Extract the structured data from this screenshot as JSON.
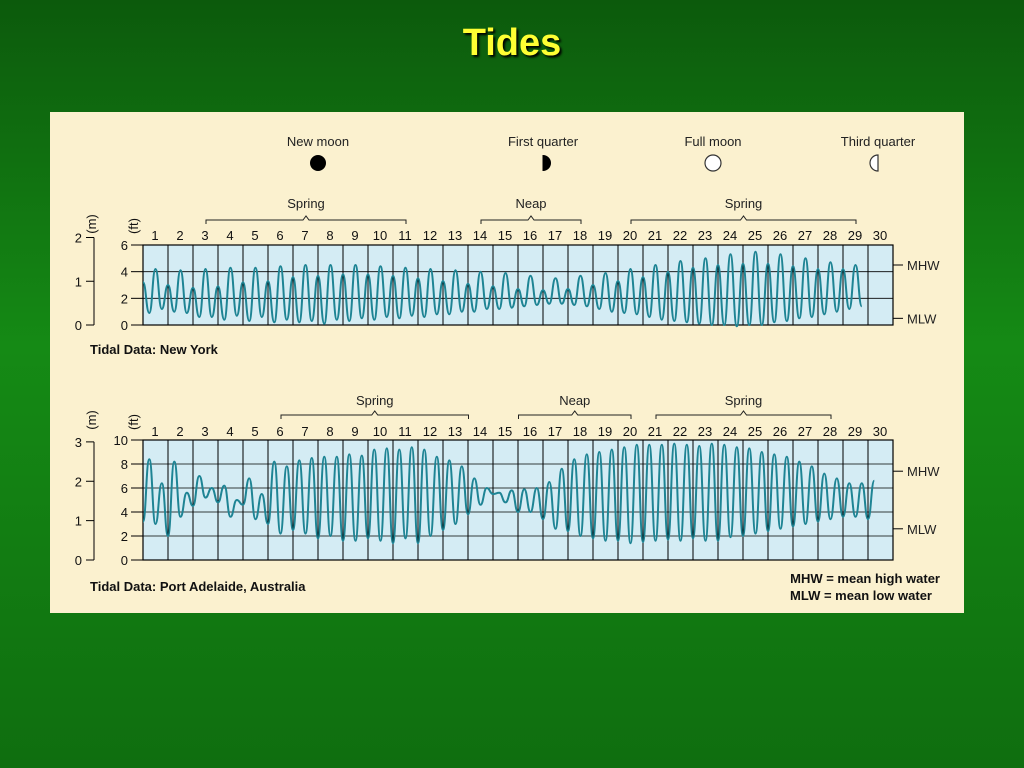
{
  "slide_title": "Tides",
  "moon_phases": [
    {
      "label": "New moon",
      "phase": "new",
      "day": 8
    },
    {
      "label": "First quarter",
      "phase": "first-quarter",
      "day": 17
    },
    {
      "label": "Full moon",
      "phase": "full",
      "day": 23.8
    },
    {
      "label": "Third quarter",
      "phase": "third-quarter",
      "day": 30.4
    }
  ],
  "legend": {
    "mhw": "MHW = mean high water",
    "mlw": "MLW = mean low water"
  },
  "chart_data": [
    {
      "type": "line",
      "title": "Tidal Data: New York",
      "x_ticks": [
        "1",
        "2",
        "3",
        "4",
        "5",
        "6",
        "7",
        "8",
        "9",
        "10",
        "11",
        "12",
        "13",
        "14",
        "15",
        "16",
        "17",
        "18",
        "19",
        "20",
        "21",
        "22",
        "23",
        "24",
        "25",
        "26",
        "27",
        "28",
        "29",
        "30"
      ],
      "xlim": [
        1,
        31
      ],
      "ylabel_ft": "(ft)",
      "ylabel_m": "(m)",
      "ylim_ft": [
        0,
        6
      ],
      "ft_ticks": [
        "0",
        "2",
        "4",
        "6"
      ],
      "m_ticks": [
        "0",
        "1",
        "2"
      ],
      "ref_lines": [
        {
          "label": "MHW",
          "value_ft": 4.5
        },
        {
          "label": "MLW",
          "value_ft": 0.5
        }
      ],
      "periods": [
        {
          "label": "Spring",
          "from": 4,
          "to": 12
        },
        {
          "label": "Neap",
          "from": 15,
          "to": 19
        },
        {
          "label": "Spring",
          "from": 21,
          "to": 30
        }
      ],
      "series": [
        {
          "x_start_day": 1,
          "step_days": 0.25,
          "values_ft": [
            3.2,
            0.9,
            4.2,
            1.2,
            3.0,
            1.0,
            4.1,
            0.9,
            2.8,
            0.6,
            4.2,
            0.6,
            2.9,
            0.4,
            4.3,
            0.7,
            3.2,
            0.3,
            4.3,
            0.6,
            3.3,
            0.2,
            4.4,
            0.4,
            3.6,
            0.2,
            4.5,
            0.3,
            3.7,
            0.1,
            4.5,
            0.4,
            3.8,
            0.3,
            4.5,
            0.5,
            3.8,
            0.4,
            4.4,
            0.6,
            3.7,
            0.5,
            4.3,
            0.7,
            3.5,
            0.6,
            4.2,
            0.8,
            3.3,
            0.8,
            4.1,
            1.0,
            3.1,
            1.0,
            4.0,
            1.2,
            2.9,
            1.2,
            3.9,
            1.3,
            2.7,
            1.4,
            3.7,
            1.5,
            2.6,
            1.6,
            3.5,
            1.6,
            2.7,
            1.5,
            3.7,
            1.4,
            3.0,
            1.2,
            3.9,
            1.0,
            3.3,
            0.9,
            4.2,
            0.8,
            3.6,
            0.6,
            4.5,
            0.4,
            4.0,
            0.3,
            4.8,
            0.2,
            4.3,
            0.1,
            5.0,
            0.0,
            4.5,
            0.0,
            5.3,
            -0.1,
            4.6,
            0.0,
            5.5,
            0.0,
            4.6,
            0.2,
            5.3,
            0.3,
            4.4,
            0.5,
            5.0,
            0.6,
            4.2,
            0.8,
            4.7,
            1.0,
            4.2,
            1.2,
            4.5,
            1.4
          ]
        }
      ]
    },
    {
      "type": "line",
      "title": "Tidal Data: Port Adelaide, Australia",
      "x_ticks": [
        "1",
        "2",
        "3",
        "4",
        "5",
        "6",
        "7",
        "8",
        "9",
        "10",
        "11",
        "12",
        "13",
        "14",
        "15",
        "16",
        "17",
        "18",
        "19",
        "20",
        "21",
        "22",
        "23",
        "24",
        "25",
        "26",
        "27",
        "28",
        "29",
        "30"
      ],
      "xlim": [
        1,
        31
      ],
      "ylabel_ft": "(ft)",
      "ylabel_m": "(m)",
      "ylim_ft": [
        0,
        10
      ],
      "ft_ticks": [
        "0",
        "2",
        "4",
        "6",
        "8",
        "10"
      ],
      "m_ticks": [
        "0",
        "1",
        "2",
        "3"
      ],
      "ref_lines": [
        {
          "label": "MHW",
          "value_ft": 7.4
        },
        {
          "label": "MLW",
          "value_ft": 2.6
        }
      ],
      "periods": [
        {
          "label": "Spring",
          "from": 7,
          "to": 14.5
        },
        {
          "label": "Neap",
          "from": 16.5,
          "to": 21
        },
        {
          "label": "Spring",
          "from": 22,
          "to": 29
        }
      ],
      "series": [
        {
          "x_start_day": 1,
          "step_days": 0.25,
          "values_ft": [
            3.2,
            8.4,
            3.0,
            6.4,
            2.0,
            8.2,
            3.6,
            5.6,
            4.5,
            7.0,
            5.2,
            6.0,
            4.8,
            6.2,
            3.6,
            5.0,
            4.6,
            6.8,
            3.4,
            5.5,
            3.0,
            8.2,
            2.2,
            7.8,
            2.5,
            8.3,
            2.2,
            8.5,
            1.8,
            8.6,
            2.0,
            8.6,
            1.6,
            8.8,
            1.6,
            8.7,
            1.8,
            9.2,
            1.6,
            9.3,
            1.4,
            9.2,
            1.8,
            9.4,
            1.4,
            9.2,
            2.0,
            8.6,
            2.5,
            8.3,
            3.0,
            7.8,
            3.8,
            6.8,
            4.6,
            6.0,
            5.5,
            5.6,
            4.8,
            5.8,
            4.0,
            5.9,
            4.0,
            6.0,
            3.4,
            6.5,
            2.6,
            7.6,
            2.4,
            8.4,
            2.0,
            8.8,
            1.8,
            9.0,
            1.6,
            9.2,
            1.6,
            9.4,
            1.4,
            9.6,
            1.5,
            9.6,
            1.6,
            9.6,
            1.7,
            9.7,
            1.6,
            9.6,
            1.8,
            9.5,
            1.6,
            9.7,
            1.6,
            9.6,
            1.9,
            9.4,
            2.0,
            9.3,
            2.2,
            9.0,
            2.4,
            8.8,
            2.6,
            8.6,
            2.8,
            8.2,
            3.0,
            7.8,
            3.2,
            7.2,
            3.4,
            6.8,
            3.6,
            6.4,
            3.6,
            6.4,
            3.4,
            6.6
          ]
        }
      ]
    }
  ]
}
